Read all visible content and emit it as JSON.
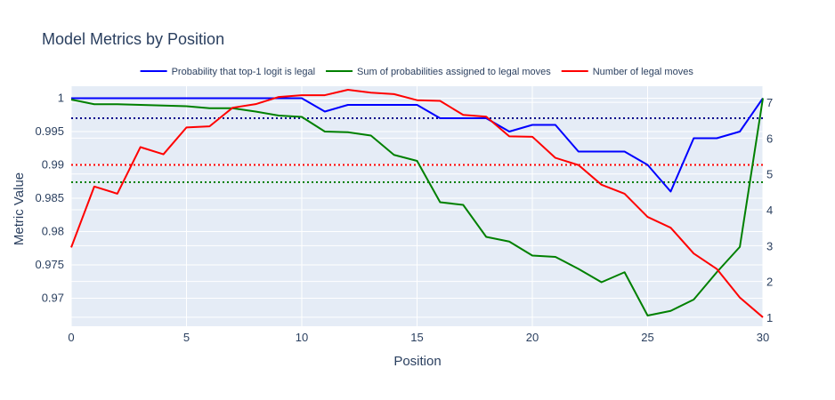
{
  "chart_data": {
    "type": "line",
    "title": "Model Metrics by Position",
    "xlabel": "Position",
    "ylabel": "Metric Value",
    "xlim": [
      0,
      30
    ],
    "ylim": [
      0.9658,
      1.0018
    ],
    "y2lim": [
      0.75,
      7.45
    ],
    "xticks": [
      0,
      5,
      10,
      15,
      20,
      25,
      30
    ],
    "yticks": [
      0.97,
      0.975,
      0.98,
      0.985,
      0.99,
      0.995,
      1
    ],
    "ytick_labels": [
      "0.97",
      "0.975",
      "0.98",
      "0.985",
      "0.99",
      "0.995",
      "1"
    ],
    "y2ticks": [
      1,
      2,
      3,
      4,
      5,
      6,
      7
    ],
    "legend_placement": "top-center, horizontal",
    "grid": true,
    "background_color": "#e5ecf6",
    "x": [
      0,
      1,
      2,
      3,
      4,
      5,
      6,
      7,
      8,
      9,
      10,
      11,
      12,
      13,
      14,
      15,
      16,
      17,
      18,
      19,
      20,
      21,
      22,
      23,
      24,
      25,
      26,
      27,
      28,
      29,
      30
    ],
    "series": [
      {
        "name": "Probability that top-1 logit is legal",
        "color": "#0000ff",
        "axis": "left",
        "values": [
          1,
          1,
          1,
          1,
          1,
          1,
          1,
          1,
          1,
          1,
          1,
          0.998,
          0.999,
          0.999,
          0.999,
          0.999,
          0.997,
          0.997,
          0.997,
          0.995,
          0.996,
          0.996,
          0.992,
          0.992,
          0.992,
          0.99,
          0.986,
          0.994,
          0.994,
          0.995,
          1
        ]
      },
      {
        "name": "Sum of probabilities assigned to legal moves",
        "color": "#008000",
        "axis": "left",
        "values": [
          0.9998,
          0.9991,
          0.9991,
          0.999,
          0.9989,
          0.9988,
          0.9985,
          0.9985,
          0.998,
          0.9974,
          0.9972,
          0.995,
          0.9949,
          0.9944,
          0.9915,
          0.9906,
          0.9844,
          0.984,
          0.9792,
          0.9785,
          0.9764,
          0.9762,
          0.9744,
          0.9724,
          0.9739,
          0.9674,
          0.9681,
          0.9698,
          0.9739,
          0.9777,
          1
        ]
      },
      {
        "name": "Number of legal moves",
        "color": "#ff0000",
        "axis": "right",
        "values": [
          2.95,
          4.65,
          4.45,
          5.75,
          5.55,
          6.3,
          6.33,
          6.85,
          6.95,
          7.15,
          7.2,
          7.2,
          7.35,
          7.27,
          7.23,
          7.06,
          7.04,
          6.65,
          6.6,
          6.05,
          6.04,
          5.45,
          5.25,
          4.7,
          4.45,
          3.8,
          3.5,
          2.78,
          2.35,
          1.55,
          1.0
        ]
      }
    ],
    "reference_lines": [
      {
        "axis": "left",
        "value": 0.997,
        "color": "#00008b",
        "style": "dotted"
      },
      {
        "axis": "left",
        "value": 0.99,
        "color": "#ff0000",
        "style": "dotted"
      },
      {
        "axis": "left",
        "value": 0.9874,
        "color": "#008000",
        "style": "dotted"
      }
    ]
  }
}
